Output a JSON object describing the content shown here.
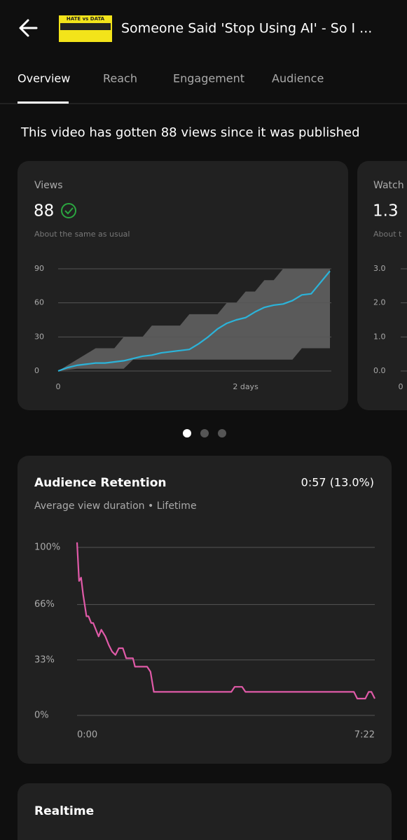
{
  "header": {
    "title": "Someone Said 'Stop Using AI' - So I ...",
    "thumbnail_text": "HATE vs DATA"
  },
  "tabs": [
    "Overview",
    "Reach",
    "Engagement",
    "Audience"
  ],
  "summary": "This video has gotten 88 views since it was published",
  "cards": [
    {
      "label": "Views",
      "value": "88",
      "note": "About the same as usual",
      "chart_data": {
        "type": "line",
        "x": [
          0,
          0.1,
          0.2,
          0.3,
          0.4,
          0.5,
          0.6,
          0.7,
          0.8,
          0.9,
          1.0,
          1.1,
          1.2,
          1.3,
          1.4,
          1.5,
          1.6,
          1.7,
          1.8,
          1.9,
          2.0,
          2.1,
          2.2,
          2.3,
          2.4,
          2.5,
          2.6,
          2.7,
          2.8,
          2.9
        ],
        "values": [
          0,
          3,
          5,
          6,
          7,
          7,
          8,
          9,
          11,
          13,
          14,
          16,
          17,
          18,
          19,
          24,
          30,
          37,
          42,
          45,
          47,
          52,
          56,
          58,
          59,
          62,
          67,
          68,
          78,
          88
        ],
        "band": {
          "upper": [
            0,
            5,
            10,
            15,
            20,
            20,
            20,
            30,
            30,
            30,
            40,
            40,
            40,
            40,
            50,
            50,
            50,
            50,
            60,
            60,
            70,
            70,
            80,
            80,
            90,
            90,
            90,
            90,
            90,
            90
          ],
          "lower": [
            0,
            1,
            2,
            2,
            2,
            2,
            2,
            2,
            10,
            10,
            10,
            10,
            10,
            10,
            10,
            10,
            10,
            10,
            10,
            10,
            10,
            10,
            10,
            10,
            10,
            10,
            20,
            20,
            20,
            20
          ]
        },
        "color": "#2bb3d9",
        "band_color": "#5a5a5a",
        "xlim": [
          0,
          2.9
        ],
        "xticks": [
          0,
          {
            "value": 2,
            "label": "2 days"
          }
        ],
        "ylim": [
          0,
          90
        ],
        "yticks": [
          0,
          30,
          60,
          90
        ],
        "grid": true
      }
    },
    {
      "label": "Watch",
      "value": "1.3",
      "note": "About t",
      "chart_data": {
        "type": "line",
        "xlim": [
          0,
          2.9
        ],
        "xticks": [
          0
        ],
        "ylim": [
          0,
          3
        ],
        "yticks": [
          {
            "value": 0,
            "label": "0.0"
          },
          {
            "value": 1,
            "label": "1.0"
          },
          {
            "value": 2,
            "label": "2.0"
          },
          {
            "value": 3,
            "label": "3.0"
          }
        ],
        "grid": true
      }
    }
  ],
  "retention": {
    "title": "Audience Retention",
    "value": "0:57 (13.0%)",
    "subtitle": "Average view duration • Lifetime",
    "chart_data": {
      "type": "line",
      "x": [
        0,
        3,
        6,
        9,
        14,
        17,
        21,
        24,
        28,
        32,
        36,
        42,
        47,
        52,
        57,
        62,
        68,
        73,
        83,
        86,
        104,
        109,
        114,
        229,
        234,
        245,
        250,
        411,
        416,
        428,
        433,
        437,
        442
      ],
      "values": [
        103,
        80,
        82,
        72,
        59,
        59,
        55,
        55,
        51,
        47,
        51,
        47,
        42,
        38,
        36,
        40,
        40,
        34,
        34,
        29,
        29,
        26,
        14,
        14,
        17,
        17,
        14,
        14,
        10,
        10,
        14,
        14,
        10
      ],
      "color": "#e05aa8",
      "xlim": [
        0,
        442
      ],
      "xticks": [
        {
          "value": 0,
          "label": "0:00"
        },
        {
          "value": 442,
          "label": "7:22"
        }
      ],
      "ylim": [
        0,
        100
      ],
      "yticks": [
        {
          "value": 0,
          "label": "0%"
        },
        {
          "value": 33,
          "label": "33%"
        },
        {
          "value": 66,
          "label": "66%"
        },
        {
          "value": 100,
          "label": "100%"
        }
      ],
      "grid": true
    }
  },
  "realtime": {
    "title": "Realtime"
  }
}
